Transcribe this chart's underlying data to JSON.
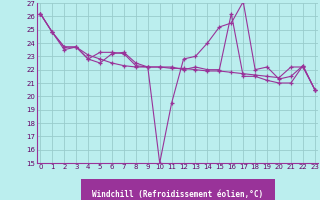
{
  "background_color": "#bbeeee",
  "grid_color": "#99cccc",
  "line_color": "#993399",
  "spine_color": "#993399",
  "tick_color": "#660066",
  "xlabel_bg": "#993399",
  "xlabel_fg": "white",
  "xlim": [
    -0.3,
    23.3
  ],
  "ylim": [
    15,
    27
  ],
  "yticks": [
    15,
    16,
    17,
    18,
    19,
    20,
    21,
    22,
    23,
    24,
    25,
    26,
    27
  ],
  "xticks": [
    0,
    1,
    2,
    3,
    4,
    5,
    6,
    7,
    8,
    9,
    10,
    11,
    12,
    13,
    14,
    15,
    16,
    17,
    18,
    19,
    20,
    21,
    22,
    23
  ],
  "xlabel": "Windchill (Refroidissement éolien,°C)",
  "s1x": [
    0,
    1,
    2,
    3,
    4,
    5,
    6,
    7,
    8,
    9,
    10,
    11,
    12,
    13,
    14,
    15,
    16,
    17,
    18,
    19,
    20,
    21,
    22,
    23
  ],
  "s1y": [
    26.2,
    24.8,
    23.7,
    23.7,
    23.1,
    22.8,
    22.5,
    22.3,
    22.2,
    22.2,
    22.2,
    22.1,
    22.1,
    22.0,
    21.9,
    21.9,
    21.8,
    21.7,
    21.6,
    21.5,
    21.4,
    22.2,
    22.2,
    20.5
  ],
  "s2x": [
    0,
    1,
    2,
    3,
    4,
    5,
    6,
    7,
    8,
    9,
    10,
    11,
    12,
    13,
    14,
    15,
    16,
    17,
    18,
    19,
    20,
    21,
    22,
    23
  ],
  "s2y": [
    26.2,
    24.8,
    23.7,
    23.7,
    22.8,
    22.5,
    23.2,
    23.3,
    22.5,
    22.2,
    15.0,
    19.5,
    22.8,
    23.0,
    24.0,
    25.2,
    25.5,
    27.1,
    22.0,
    22.2,
    21.3,
    21.5,
    22.3,
    20.5
  ],
  "s3x": [
    0,
    1,
    2,
    3,
    4,
    5,
    6,
    7,
    8,
    9,
    10,
    11,
    12,
    13,
    14,
    15,
    16,
    17,
    18,
    19,
    20,
    21,
    22,
    23
  ],
  "s3y": [
    26.2,
    24.8,
    23.5,
    23.7,
    22.8,
    23.3,
    23.3,
    23.2,
    22.3,
    22.2,
    22.2,
    22.2,
    22.0,
    22.2,
    22.0,
    22.0,
    26.2,
    21.5,
    21.5,
    21.2,
    21.0,
    21.0,
    22.3,
    20.5
  ],
  "tick_fontsize": 5.0,
  "xlabel_fontsize": 5.5
}
